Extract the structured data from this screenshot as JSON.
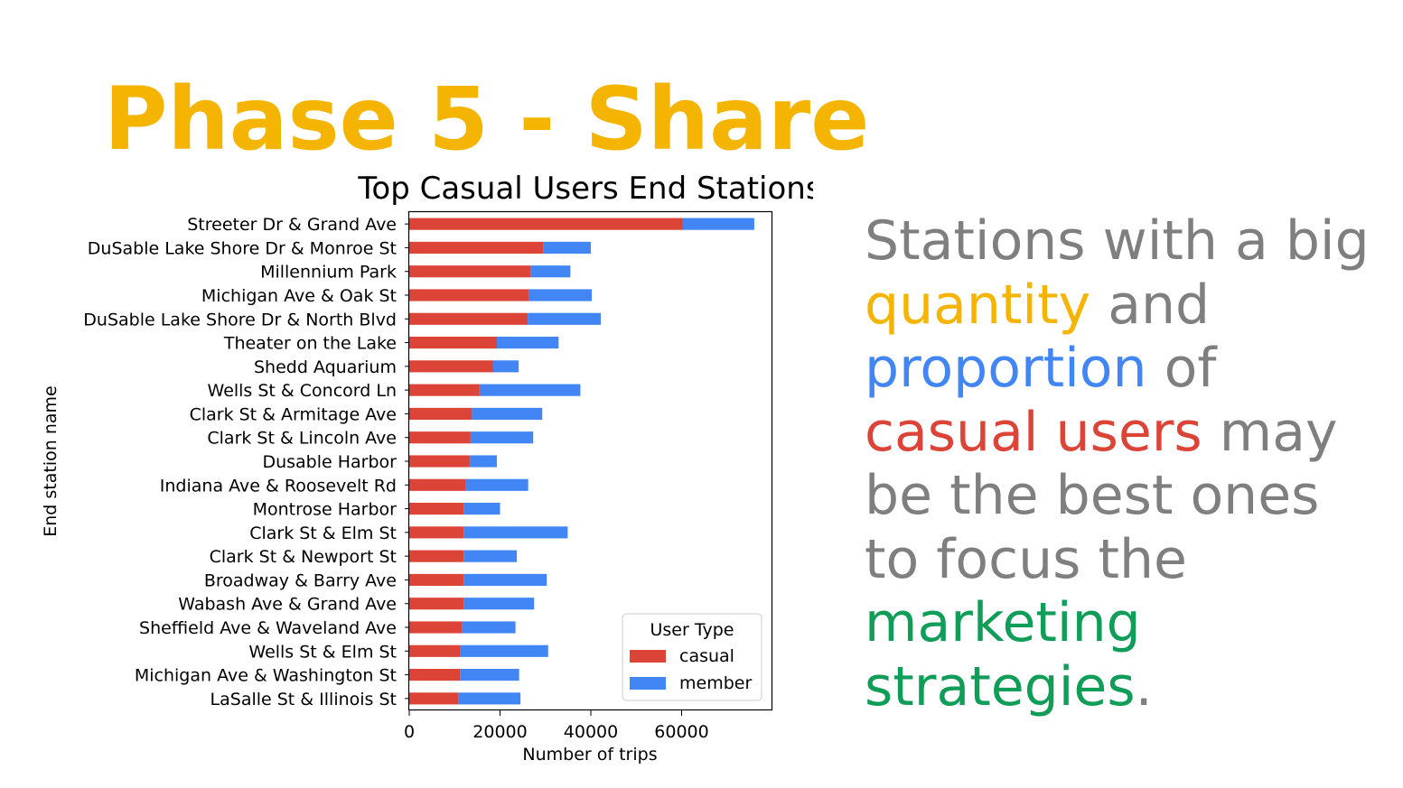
{
  "slide": {
    "title": "Phase 5 - Share",
    "title_color": "#f4b400"
  },
  "message": {
    "segments": [
      {
        "text": "Stations with a big ",
        "color": "#7f7f7f"
      },
      {
        "text": "quantity",
        "color": "#f4b400"
      },
      {
        "text": " and ",
        "color": "#7f7f7f"
      },
      {
        "text": "proportion",
        "color": "#4285f4"
      },
      {
        "text": " of ",
        "color": "#7f7f7f"
      },
      {
        "text": "casual users",
        "color": "#db4437"
      },
      {
        "text": " may be the best ones to focus the ",
        "color": "#7f7f7f"
      },
      {
        "text": "marketing strategies",
        "color": "#0f9d58"
      },
      {
        "text": ".",
        "color": "#7f7f7f"
      }
    ]
  },
  "chart_data": {
    "type": "bar",
    "orientation": "horizontal",
    "stacked": true,
    "title": "Top Casual Users End Stations",
    "xlabel": "Number of trips",
    "ylabel": "End station name",
    "xlim": [
      0,
      80000
    ],
    "xticks": [
      0,
      20000,
      40000,
      60000
    ],
    "categories": [
      "Streeter Dr & Grand Ave",
      "DuSable Lake Shore Dr & Monroe St",
      "Millennium Park",
      "Michigan Ave & Oak St",
      "DuSable Lake Shore Dr & North Blvd",
      "Theater on the Lake",
      "Shedd Aquarium",
      "Wells St & Concord Ln",
      "Clark St & Armitage Ave",
      "Clark St & Lincoln Ave",
      "Dusable Harbor",
      "Indiana Ave & Roosevelt Rd",
      "Montrose Harbor",
      "Clark St & Elm St",
      "Clark St & Newport St",
      "Broadway & Barry Ave",
      "Wabash Ave & Grand Ave",
      "Sheffield Ave & Waveland Ave",
      "Wells St & Elm St",
      "Michigan Ave & Washington St",
      "LaSalle St & Illinois St"
    ],
    "series": [
      {
        "name": "casual",
        "color": "#db4437",
        "values": [
          60200,
          29600,
          26800,
          26400,
          26100,
          19300,
          18500,
          15500,
          13800,
          13500,
          13400,
          12500,
          12000,
          12000,
          12000,
          12000,
          12000,
          11700,
          11300,
          11200,
          10900
        ]
      },
      {
        "name": "member",
        "color": "#4285f4",
        "values": [
          15800,
          10400,
          8700,
          13800,
          16100,
          13600,
          5600,
          22200,
          15500,
          13800,
          5900,
          13700,
          8000,
          22900,
          11700,
          18300,
          15500,
          11700,
          19300,
          13000,
          13600
        ]
      }
    ],
    "legend": {
      "title": "User Type",
      "position": "lower right"
    },
    "grid": false
  }
}
